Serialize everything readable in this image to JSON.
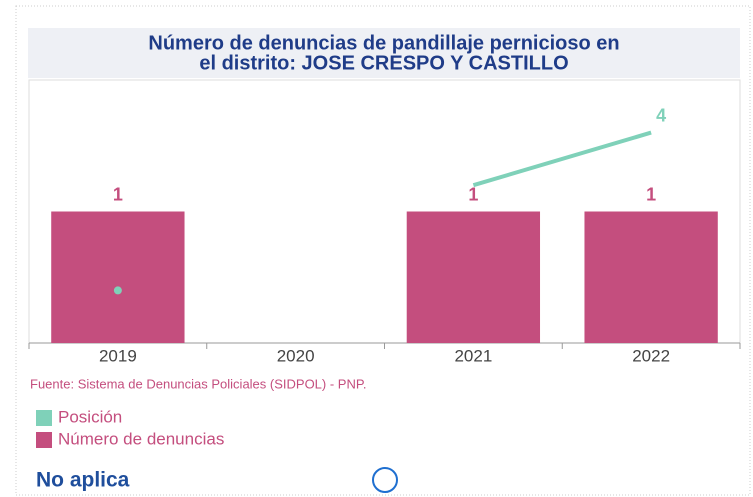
{
  "chart_data": {
    "type": "bar",
    "title": "Número de denuncias de pandillaje pernicioso en el distrito: JOSE CRESPO Y CASTILLO",
    "categories": [
      "2019",
      "2020",
      "2021",
      "2022"
    ],
    "series": [
      {
        "name": "Número de denuncias",
        "type": "bar",
        "color": "#c44e7e",
        "values": [
          1,
          null,
          1,
          1
        ]
      },
      {
        "name": "Posición",
        "type": "line",
        "axis": "y2",
        "color": "#7fd1b9",
        "values": [
          1,
          null,
          3,
          4
        ],
        "value_labels": [
          null,
          null,
          null,
          "4"
        ]
      }
    ],
    "ylim": [
      0,
      2
    ],
    "y2lim": [
      0,
      5
    ],
    "legend_order": [
      1,
      0
    ],
    "source": "Fuente: Sistema de Denuncias Policiales (SIDPOL) - PNP.",
    "note": "No aplica"
  }
}
